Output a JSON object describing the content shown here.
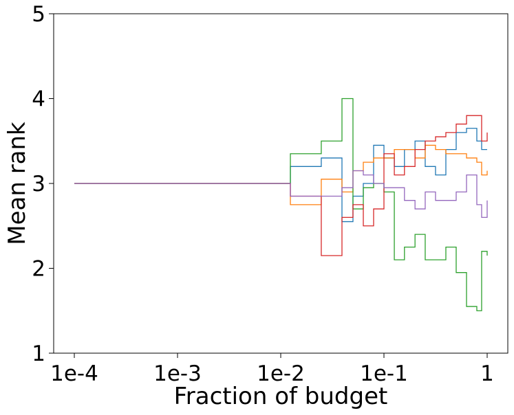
{
  "chart_data": {
    "type": "line",
    "xscale": "log",
    "drawstyle": "steps-post",
    "xlabel": "Fraction of budget",
    "ylabel": "Mean rank",
    "x": [
      0.0001,
      0.0124,
      0.0247,
      0.0392,
      0.0501,
      0.0631,
      0.0794,
      0.1,
      0.126,
      0.158,
      0.2,
      0.251,
      0.316,
      0.398,
      0.501,
      0.631,
      0.794,
      0.884,
      1
    ],
    "series": [
      {
        "color": "#1f77b4",
        "values": [
          3,
          3.2,
          3.3,
          2.55,
          2.85,
          3.0,
          3.45,
          3.3,
          3.2,
          3.4,
          3.5,
          3.2,
          3.1,
          3.4,
          3.6,
          3.65,
          3.5,
          3.4,
          3.4
        ]
      },
      {
        "color": "#ff7f0e",
        "values": [
          3,
          2.75,
          3.05,
          2.9,
          3.15,
          3.25,
          3.3,
          3.3,
          3.4,
          3.4,
          3.3,
          3.45,
          3.4,
          3.35,
          3.35,
          3.3,
          3.25,
          3.1,
          3.15
        ]
      },
      {
        "color": "#2ca02c",
        "values": [
          3,
          3.35,
          3.5,
          4.0,
          2.7,
          2.95,
          3.0,
          2.9,
          2.1,
          2.25,
          2.4,
          2.1,
          2.1,
          2.25,
          1.95,
          1.55,
          1.5,
          2.2,
          2.15
        ]
      },
      {
        "color": "#d62728",
        "values": [
          3,
          2.85,
          2.15,
          2.6,
          2.75,
          2.5,
          2.7,
          3.35,
          3.1,
          3.2,
          3.4,
          3.5,
          3.55,
          3.6,
          3.7,
          3.8,
          3.8,
          3.5,
          3.6
        ]
      },
      {
        "color": "#9467bd",
        "values": [
          3,
          2.85,
          2.85,
          2.95,
          3.15,
          3.1,
          3.0,
          2.95,
          2.95,
          2.8,
          2.7,
          2.9,
          2.8,
          2.8,
          2.9,
          3.1,
          2.75,
          2.6,
          2.8
        ]
      }
    ],
    "xlim": [
      6.31e-05,
      1.585
    ],
    "xticks": [
      {
        "value": 0.0001,
        "label": "1e-4"
      },
      {
        "value": 0.001,
        "label": "1e-3"
      },
      {
        "value": 0.01,
        "label": "1e-2"
      },
      {
        "value": 0.1,
        "label": "1e-1"
      },
      1
    ],
    "ylim": [
      1,
      5
    ],
    "yticks": [
      1,
      2,
      3,
      4,
      5
    ],
    "grid": false
  }
}
